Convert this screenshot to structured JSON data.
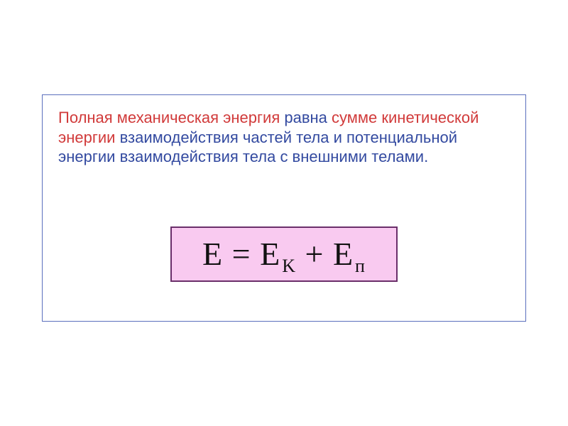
{
  "colors": {
    "frame_border": "#5b6fbd",
    "formula_bg": "#f9caf0",
    "formula_border": "#6a2f6a",
    "formula_text": "#111111",
    "text_red": "#d13a3a",
    "text_blue": "#334aa0"
  },
  "text": {
    "a1": "Полная механическая энергия",
    "a2": " равна ",
    "a3": "сумме кинетической энергии  ",
    "a4": "взаимодействия частей тела и потенциальной энергии ",
    "a5": "взаимодействия тела с внешними телами."
  },
  "formula": {
    "E": "E",
    "eq": " = ",
    "Ek": "E",
    "ksub": "K",
    "plus": " + ",
    "Ep": "E",
    "psub": "п"
  }
}
